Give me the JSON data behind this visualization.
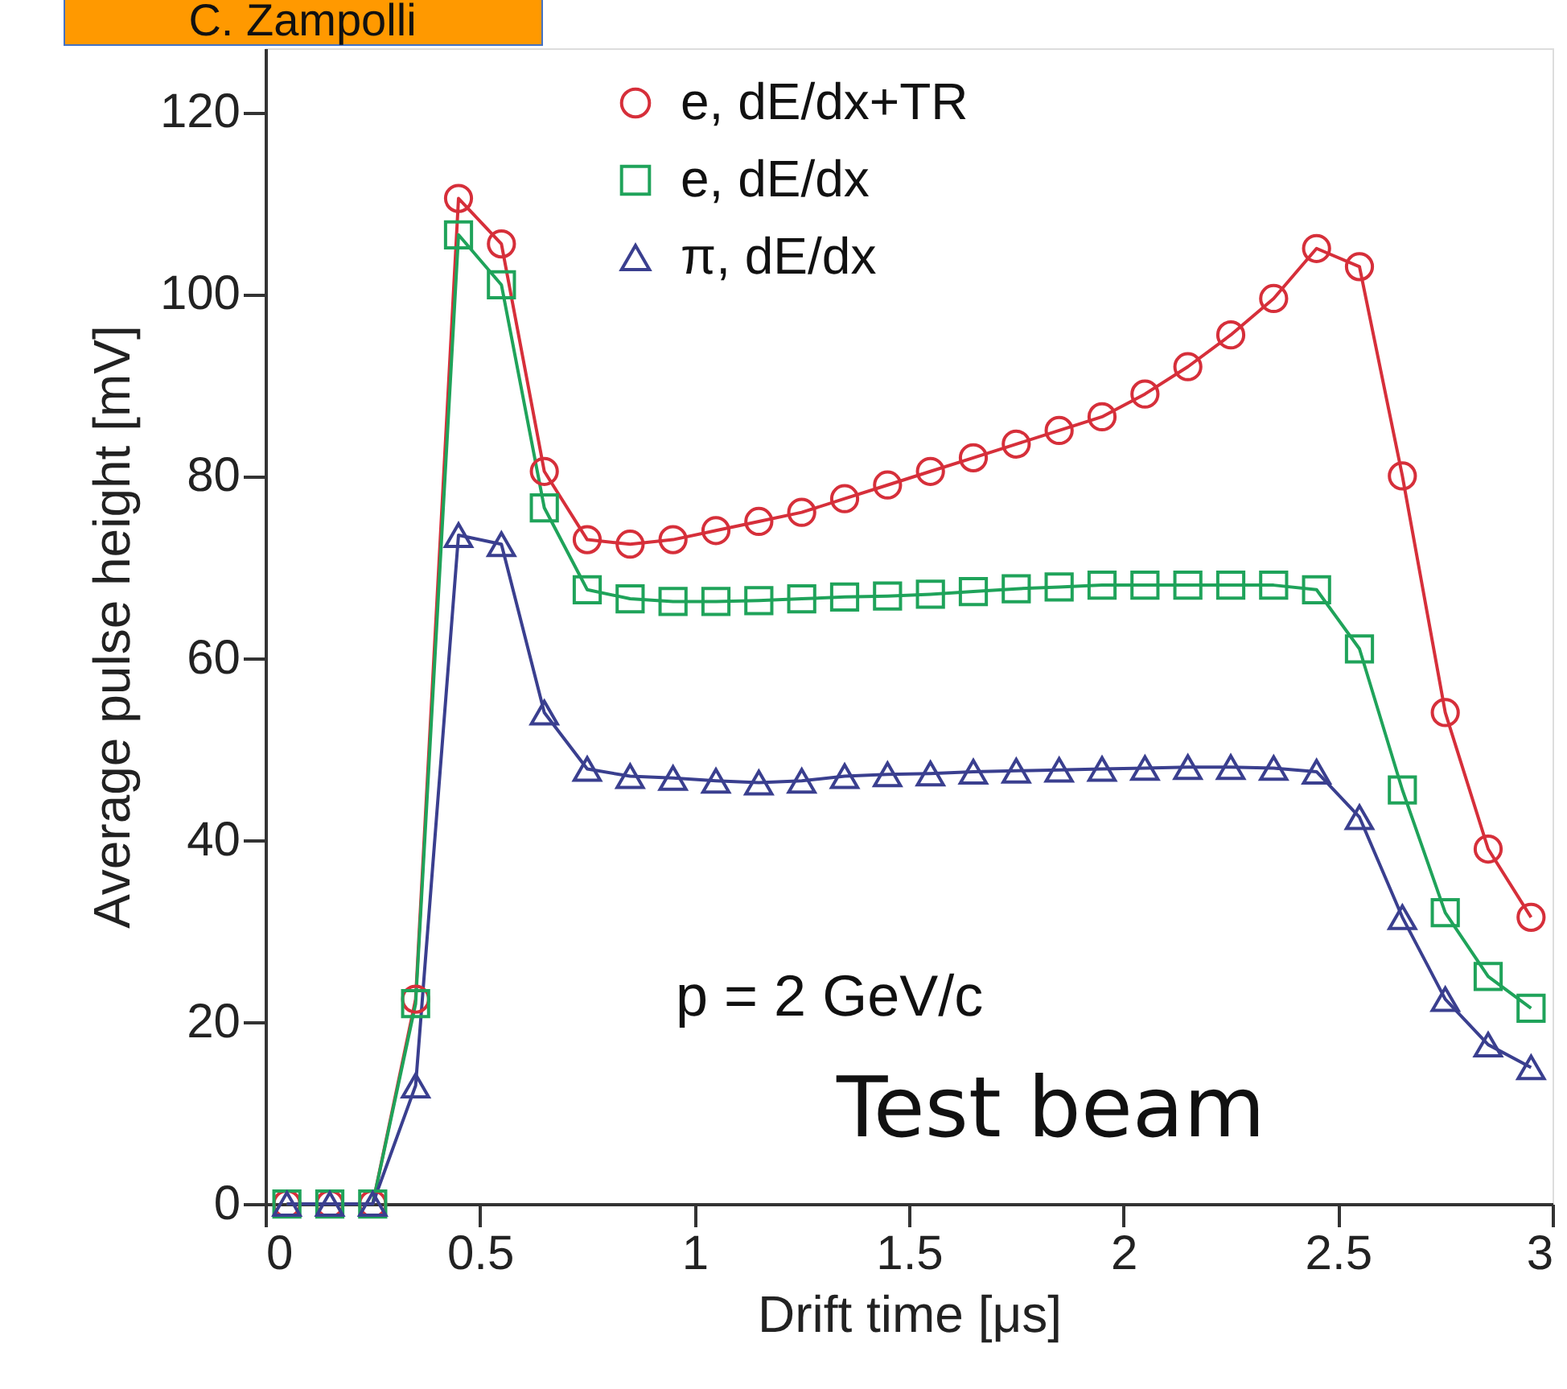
{
  "chart_data": {
    "type": "line",
    "xlabel": "Drift time [μs]",
    "ylabel": "Average pulse height [mV]",
    "x": [
      0.05,
      0.15,
      0.25,
      0.35,
      0.45,
      0.55,
      0.65,
      0.75,
      0.85,
      0.95,
      1.05,
      1.15,
      1.25,
      1.35,
      1.45,
      1.55,
      1.65,
      1.75,
      1.85,
      1.95,
      2.05,
      2.15,
      2.25,
      2.35,
      2.45,
      2.55,
      2.65,
      2.75,
      2.85,
      2.95
    ],
    "series": [
      {
        "name": "e, dE/dx+TR",
        "color": "#d62f3a",
        "marker": "circle",
        "values": [
          0,
          0,
          0,
          22.5,
          110.5,
          105.5,
          80.5,
          73,
          72.5,
          73,
          74,
          75,
          76,
          77.5,
          79,
          80.5,
          82,
          83.5,
          85,
          86.5,
          89,
          92,
          95.5,
          99.5,
          105,
          103,
          80,
          54,
          39,
          31.5
        ]
      },
      {
        "name": "e, dE/dx",
        "color": "#1fa35a",
        "marker": "square",
        "values": [
          0,
          0,
          0,
          22,
          106.5,
          101,
          76.5,
          67.5,
          66.5,
          66.2,
          66.2,
          66.3,
          66.5,
          66.7,
          66.8,
          67,
          67.3,
          67.6,
          67.8,
          68,
          68,
          68,
          68,
          68,
          67.5,
          61,
          45.5,
          32,
          25,
          21.5
        ]
      },
      {
        "name": "π, dE/dx",
        "color": "#3a3f8f",
        "marker": "triangle",
        "values": [
          0,
          0,
          0,
          13,
          73.5,
          72.5,
          54,
          47.8,
          47,
          46.8,
          46.5,
          46.3,
          46.5,
          47,
          47.2,
          47.3,
          47.5,
          47.6,
          47.7,
          47.8,
          47.9,
          48,
          48,
          47.9,
          47.5,
          42.5,
          31.5,
          22.5,
          17.5,
          15
        ]
      }
    ],
    "xlim": [
      0,
      3
    ],
    "xticks": [
      0,
      0.5,
      1,
      1.5,
      2,
      2.5,
      3
    ],
    "ylim": [
      0,
      127
    ],
    "yticks": [
      0,
      20,
      40,
      60,
      80,
      100,
      120
    ],
    "grid": false,
    "legend": "top",
    "line_style": "solid",
    "annotations": [
      "p = 2 GeV/c",
      "Test beam",
      "C. Zampolli"
    ]
  }
}
